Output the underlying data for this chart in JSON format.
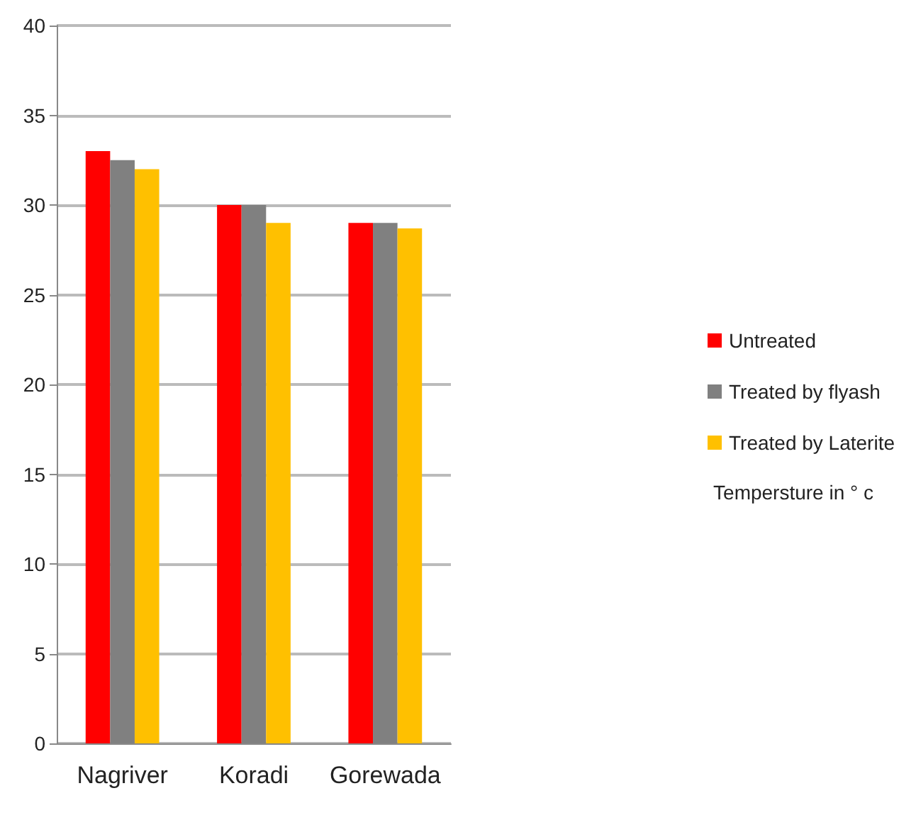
{
  "chart_data": {
    "type": "bar",
    "categories": [
      "Nagriver",
      "Koradi",
      "Gorewada"
    ],
    "series": [
      {
        "name": "Untreated",
        "color": "#ff0000",
        "values": [
          33,
          30,
          29
        ]
      },
      {
        "name": "Treated by flyash",
        "color": "#808080",
        "values": [
          32.5,
          30,
          29
        ]
      },
      {
        "name": "Treated by Laterite",
        "color": "#ffc000",
        "values": [
          32,
          29,
          28.7
        ]
      }
    ],
    "ylim": [
      0,
      40
    ],
    "yticks": [
      0,
      5,
      10,
      15,
      20,
      25,
      30,
      35,
      40
    ],
    "grid": "y",
    "legend": "right",
    "annotations": [
      "Tempersture in ° c"
    ]
  }
}
